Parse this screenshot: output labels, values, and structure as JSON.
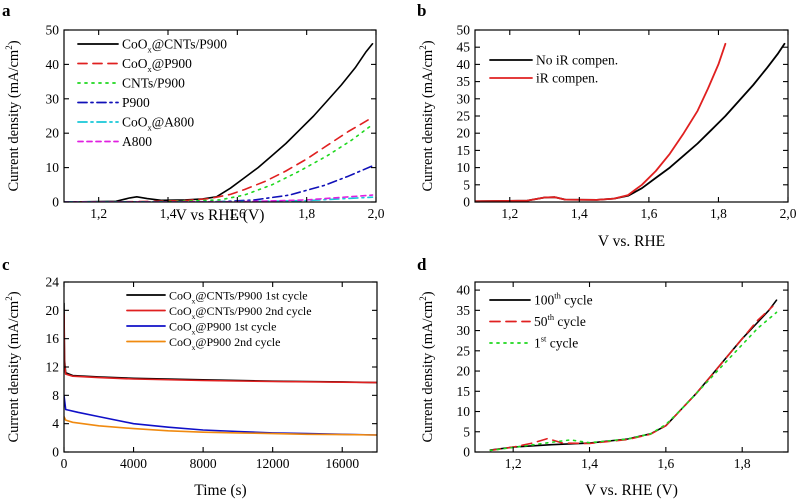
{
  "chart_data": [
    {
      "panel": "a",
      "type": "line",
      "xlabel": "V vs RHE (V)",
      "ylabel": "Current density (mA/cm²)",
      "xlim": [
        1.1,
        2.0
      ],
      "ylim": [
        0,
        50
      ],
      "x_ticks": [
        1.2,
        1.4,
        1.6,
        1.8,
        2.0
      ],
      "x_tick_labels": [
        "1,2",
        "1,4",
        "1,6",
        "1,8",
        "2,0"
      ],
      "y_ticks": [
        0,
        10,
        20,
        30,
        40,
        50
      ],
      "legend_position": "top-left",
      "series": [
        {
          "name": "CoOx@CNTs/P900",
          "label_parts": [
            "CoO",
            "x",
            "@CNTs/P900"
          ],
          "color": "#000000",
          "dash": "",
          "points": [
            [
              1.1,
              0
            ],
            [
              1.25,
              0.2
            ],
            [
              1.29,
              1.2
            ],
            [
              1.31,
              1.5
            ],
            [
              1.34,
              1.0
            ],
            [
              1.38,
              0.5
            ],
            [
              1.45,
              0.6
            ],
            [
              1.5,
              0.9
            ],
            [
              1.54,
              1.5
            ],
            [
              1.58,
              4
            ],
            [
              1.62,
              7
            ],
            [
              1.66,
              10
            ],
            [
              1.7,
              13.5
            ],
            [
              1.74,
              17
            ],
            [
              1.78,
              21
            ],
            [
              1.82,
              25
            ],
            [
              1.86,
              29.5
            ],
            [
              1.9,
              34
            ],
            [
              1.94,
              39
            ],
            [
              1.97,
              43.5
            ],
            [
              1.99,
              46
            ]
          ]
        },
        {
          "name": "CoOx@P900",
          "label_parts": [
            "CoO",
            "x",
            "@P900"
          ],
          "color": "#e02020",
          "dash": "9,6",
          "points": [
            [
              1.1,
              0
            ],
            [
              1.3,
              0.1
            ],
            [
              1.45,
              0.4
            ],
            [
              1.52,
              1
            ],
            [
              1.58,
              2.2
            ],
            [
              1.62,
              3.6
            ],
            [
              1.68,
              6
            ],
            [
              1.74,
              9
            ],
            [
              1.8,
              12.5
            ],
            [
              1.86,
              16.5
            ],
            [
              1.92,
              20.5
            ],
            [
              1.98,
              24
            ]
          ]
        },
        {
          "name": "CNTs/P900",
          "label_parts": [
            "CNTs/P900"
          ],
          "color": "#1fd81f",
          "dash": "2,5",
          "points": [
            [
              1.1,
              0
            ],
            [
              1.4,
              0.1
            ],
            [
              1.55,
              0.6
            ],
            [
              1.62,
              2
            ],
            [
              1.7,
              5
            ],
            [
              1.78,
              9
            ],
            [
              1.86,
              13.5
            ],
            [
              1.93,
              18
            ],
            [
              1.99,
              22.5
            ]
          ]
        },
        {
          "name": "P900",
          "label_parts": [
            "P900"
          ],
          "color": "#1010b8",
          "dash": "9,4,2,4",
          "points": [
            [
              1.1,
              0
            ],
            [
              1.55,
              0.1
            ],
            [
              1.65,
              0.6
            ],
            [
              1.75,
              2
            ],
            [
              1.85,
              4.8
            ],
            [
              1.92,
              7.5
            ],
            [
              1.99,
              10.5
            ]
          ]
        },
        {
          "name": "CoOx@A800",
          "label_parts": [
            "CoO",
            "x",
            "@A800"
          ],
          "color": "#18c8d8",
          "dash": "9,4,2,4",
          "points": [
            [
              1.1,
              0
            ],
            [
              1.6,
              0.1
            ],
            [
              1.8,
              0.4
            ],
            [
              1.99,
              1.4
            ]
          ]
        },
        {
          "name": "A800",
          "label_parts": [
            "A800"
          ],
          "color": "#e020e0",
          "dash": "5,4",
          "points": [
            [
              1.1,
              0
            ],
            [
              1.6,
              0.05
            ],
            [
              1.8,
              0.6
            ],
            [
              1.99,
              2
            ]
          ]
        }
      ]
    },
    {
      "panel": "b",
      "type": "line",
      "xlabel": "V vs. RHE",
      "ylabel": "Current density (mA/cm²)",
      "xlim": [
        1.1,
        2.0
      ],
      "ylim": [
        0,
        50
      ],
      "x_ticks": [
        1.2,
        1.4,
        1.6,
        1.8,
        2.0
      ],
      "x_tick_labels": [
        "1,2",
        "1,4",
        "1,6",
        "1,8",
        "2,0"
      ],
      "y_ticks": [
        0,
        5,
        10,
        15,
        20,
        25,
        30,
        35,
        40,
        45,
        50
      ],
      "legend_position": "top-left",
      "series": [
        {
          "name": "No iR compen.",
          "label_parts": [
            "No iR compen."
          ],
          "color": "#000000",
          "dash": "",
          "points": [
            [
              1.1,
              0.2
            ],
            [
              1.25,
              0.4
            ],
            [
              1.3,
              1.3
            ],
            [
              1.33,
              1.4
            ],
            [
              1.36,
              0.7
            ],
            [
              1.45,
              0.6
            ],
            [
              1.5,
              1.0
            ],
            [
              1.54,
              1.8
            ],
            [
              1.58,
              4
            ],
            [
              1.62,
              7
            ],
            [
              1.66,
              10
            ],
            [
              1.7,
              13.5
            ],
            [
              1.74,
              17
            ],
            [
              1.78,
              21
            ],
            [
              1.82,
              25
            ],
            [
              1.86,
              29.5
            ],
            [
              1.9,
              34
            ],
            [
              1.94,
              39
            ],
            [
              1.97,
              43
            ],
            [
              1.99,
              46
            ]
          ]
        },
        {
          "name": "iR compen.",
          "label_parts": [
            "iR compen."
          ],
          "color": "#e02020",
          "dash": "",
          "points": [
            [
              1.1,
              0.2
            ],
            [
              1.25,
              0.4
            ],
            [
              1.3,
              1.3
            ],
            [
              1.33,
              1.4
            ],
            [
              1.36,
              0.7
            ],
            [
              1.45,
              0.6
            ],
            [
              1.5,
              1.0
            ],
            [
              1.54,
              2
            ],
            [
              1.58,
              5
            ],
            [
              1.62,
              9
            ],
            [
              1.66,
              14
            ],
            [
              1.7,
              20
            ],
            [
              1.74,
              26.5
            ],
            [
              1.77,
              33
            ],
            [
              1.8,
              40
            ],
            [
              1.82,
              46
            ]
          ]
        }
      ]
    },
    {
      "panel": "c",
      "type": "line",
      "xlabel": "Time (s)",
      "ylabel": "Current density (mA/cm²)",
      "xlim": [
        0,
        18000
      ],
      "ylim": [
        0,
        24
      ],
      "x_ticks": [
        0,
        4000,
        8000,
        12000,
        16000
      ],
      "x_tick_labels": [
        "0",
        "4000",
        "8000",
        "12000",
        "16000"
      ],
      "y_ticks": [
        0,
        4,
        8,
        12,
        16,
        20,
        24
      ],
      "legend_position": "top-right",
      "series": [
        {
          "name": "CoOx@CNTs/P900 1st cycle",
          "label_parts": [
            "CoO",
            "x",
            "@CNTs/P900 1st cycle"
          ],
          "color": "#000000",
          "dash": "",
          "points": [
            [
              0,
              21
            ],
            [
              30,
              13
            ],
            [
              100,
              11.2
            ],
            [
              500,
              10.8
            ],
            [
              2000,
              10.6
            ],
            [
              4000,
              10.4
            ],
            [
              8000,
              10.2
            ],
            [
              12000,
              10.0
            ],
            [
              16000,
              9.9
            ],
            [
              18000,
              9.8
            ]
          ]
        },
        {
          "name": "CoOx@CNTs/P900 2nd cycle",
          "label_parts": [
            "CoO",
            "x",
            "@CNTs/P900 2nd cycle"
          ],
          "color": "#e02020",
          "dash": "",
          "points": [
            [
              0,
              19.5
            ],
            [
              30,
              12.5
            ],
            [
              100,
              11
            ],
            [
              500,
              10.7
            ],
            [
              2000,
              10.5
            ],
            [
              4000,
              10.3
            ],
            [
              8000,
              10.1
            ],
            [
              12000,
              9.95
            ],
            [
              16000,
              9.85
            ],
            [
              18000,
              9.8
            ]
          ]
        },
        {
          "name": "CoOx@P900 1st cycle",
          "label_parts": [
            "CoO",
            "x",
            "@P900 1st cycle"
          ],
          "color": "#1010c8",
          "dash": "",
          "points": [
            [
              0,
              8
            ],
            [
              100,
              6
            ],
            [
              800,
              5.6
            ],
            [
              2000,
              5
            ],
            [
              4000,
              4
            ],
            [
              6000,
              3.5
            ],
            [
              8000,
              3.1
            ],
            [
              10000,
              2.9
            ],
            [
              12000,
              2.7
            ],
            [
              14000,
              2.6
            ],
            [
              16000,
              2.5
            ],
            [
              18000,
              2.4
            ]
          ]
        },
        {
          "name": "CoOx@P900 2nd cycle",
          "label_parts": [
            "CoO",
            "x",
            "@P900 2nd cycle"
          ],
          "color": "#f08a10",
          "dash": "",
          "points": [
            [
              0,
              5
            ],
            [
              100,
              4.5
            ],
            [
              500,
              4.2
            ],
            [
              2000,
              3.7
            ],
            [
              4000,
              3.3
            ],
            [
              6000,
              3.0
            ],
            [
              8000,
              2.8
            ],
            [
              10000,
              2.7
            ],
            [
              12000,
              2.6
            ],
            [
              14000,
              2.5
            ],
            [
              16000,
              2.45
            ],
            [
              18000,
              2.4
            ]
          ]
        }
      ]
    },
    {
      "panel": "d",
      "type": "line",
      "xlabel": "V vs. RHE (V)",
      "ylabel": "Current density (mA/cm²)",
      "xlim": [
        1.1,
        1.92
      ],
      "ylim": [
        0,
        42
      ],
      "x_ticks": [
        1.2,
        1.4,
        1.6,
        1.8
      ],
      "x_tick_labels": [
        "1,2",
        "1,4",
        "1,6",
        "1,8"
      ],
      "y_ticks": [
        0,
        5,
        10,
        15,
        20,
        25,
        30,
        35,
        40
      ],
      "legend_position": "top-left",
      "series": [
        {
          "name": "100th cycle",
          "label_parts": [
            "100",
            "th",
            " cycle"
          ],
          "color": "#000000",
          "dash": "",
          "points": [
            [
              1.14,
              0.5
            ],
            [
              1.2,
              1.2
            ],
            [
              1.3,
              1.8
            ],
            [
              1.4,
              2.2
            ],
            [
              1.5,
              3.2
            ],
            [
              1.56,
              4.5
            ],
            [
              1.6,
              6.5
            ],
            [
              1.64,
              10.5
            ],
            [
              1.68,
              14.5
            ],
            [
              1.72,
              19
            ],
            [
              1.76,
              23.5
            ],
            [
              1.8,
              28
            ],
            [
              1.84,
              32
            ],
            [
              1.87,
              35
            ],
            [
              1.89,
              37.5
            ]
          ]
        },
        {
          "name": "50th cycle",
          "label_parts": [
            "50",
            "th",
            " cycle"
          ],
          "color": "#e02020",
          "dash": "10,6",
          "points": [
            [
              1.14,
              0.4
            ],
            [
              1.2,
              1.2
            ],
            [
              1.25,
              2.2
            ],
            [
              1.29,
              3.3
            ],
            [
              1.33,
              2.2
            ],
            [
              1.4,
              2.1
            ],
            [
              1.5,
              3.1
            ],
            [
              1.56,
              4.4
            ],
            [
              1.6,
              6.5
            ],
            [
              1.64,
              10.5
            ],
            [
              1.68,
              14.5
            ],
            [
              1.72,
              19
            ],
            [
              1.76,
              23.5
            ],
            [
              1.8,
              28
            ],
            [
              1.84,
              32.5
            ],
            [
              1.88,
              36
            ]
          ]
        },
        {
          "name": "1st cycle",
          "label_parts": [
            "1",
            "st",
            " cycle"
          ],
          "color": "#1fd81f",
          "dash": "2,5",
          "points": [
            [
              1.14,
              0.4
            ],
            [
              1.2,
              1.1
            ],
            [
              1.3,
              2.4
            ],
            [
              1.35,
              3.0
            ],
            [
              1.4,
              2.3
            ],
            [
              1.5,
              3.2
            ],
            [
              1.56,
              4.5
            ],
            [
              1.6,
              6.8
            ],
            [
              1.64,
              10.5
            ],
            [
              1.68,
              14.5
            ],
            [
              1.72,
              18.5
            ],
            [
              1.76,
              22.5
            ],
            [
              1.8,
              26.5
            ],
            [
              1.84,
              30.5
            ],
            [
              1.89,
              34.5
            ]
          ]
        }
      ]
    }
  ]
}
